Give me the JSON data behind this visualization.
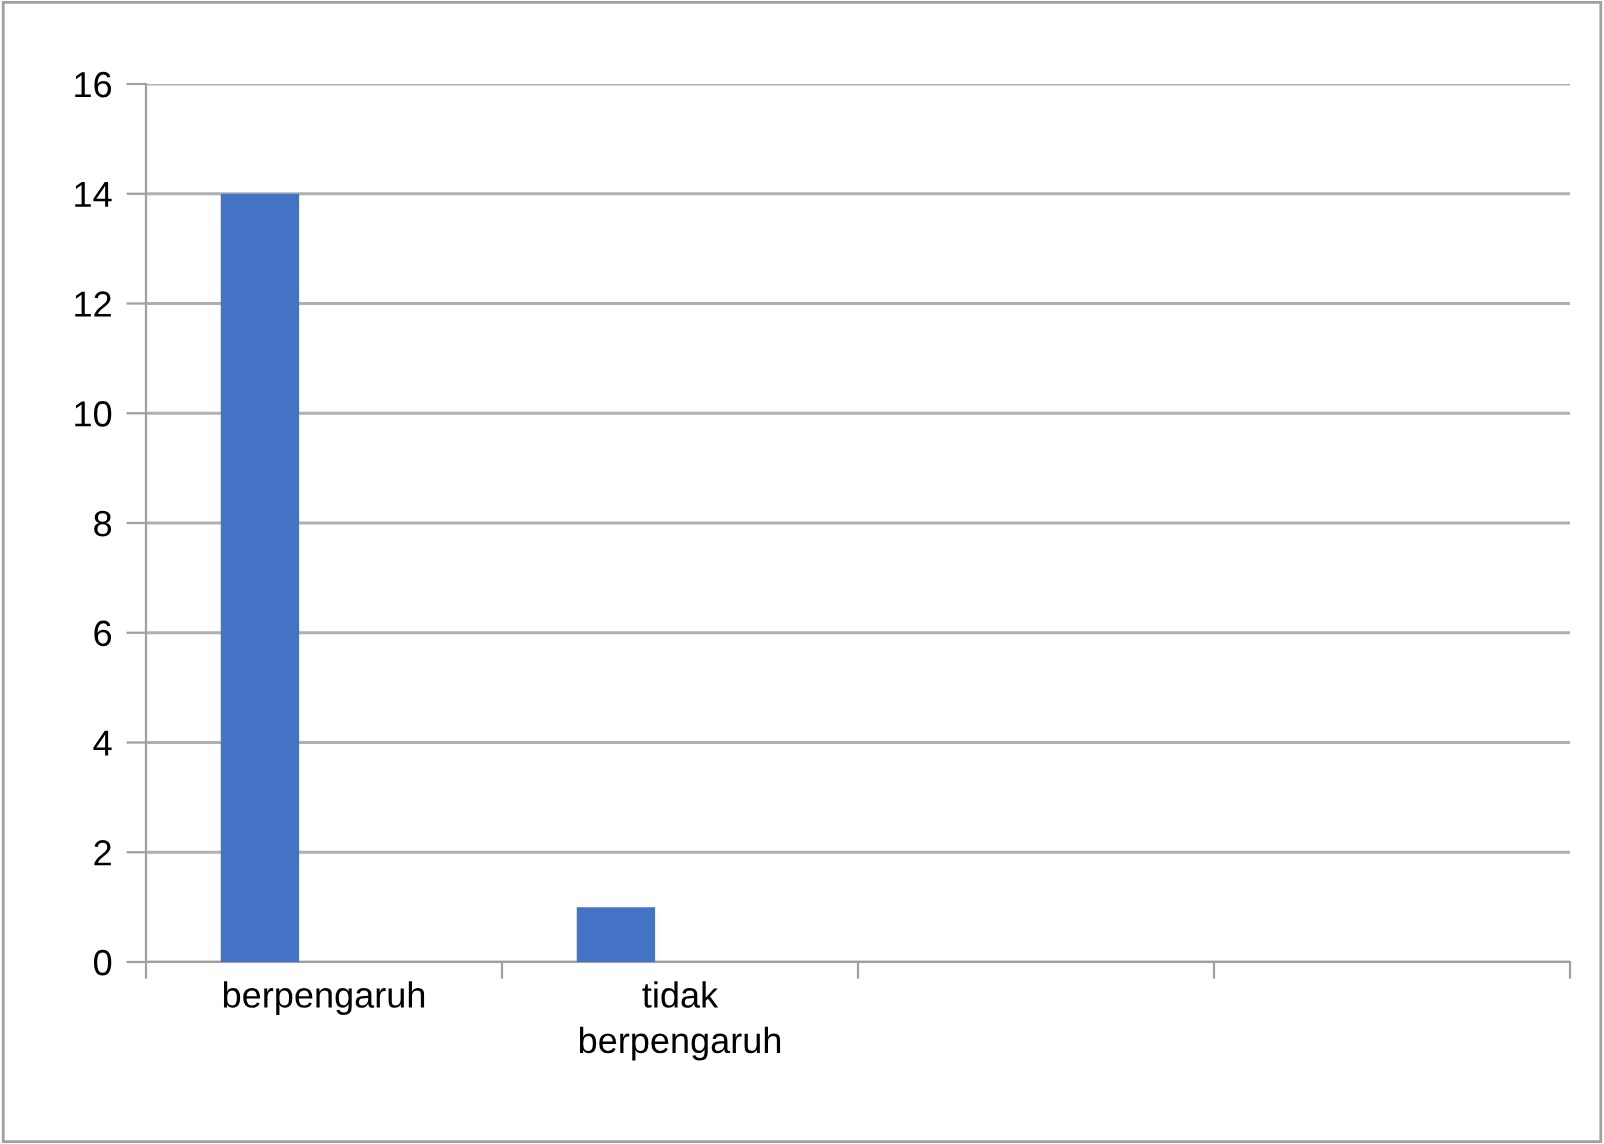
{
  "chart_data": {
    "type": "bar",
    "categories": [
      "berpengaruh",
      "tidak berpengaruh",
      null,
      null
    ],
    "values": [
      14,
      1,
      null,
      null
    ],
    "color": "#4472c4",
    "ylim": [
      0,
      16
    ],
    "yticks": [
      0,
      2,
      4,
      6,
      8,
      10,
      12,
      14,
      16
    ],
    "grid": "y"
  }
}
